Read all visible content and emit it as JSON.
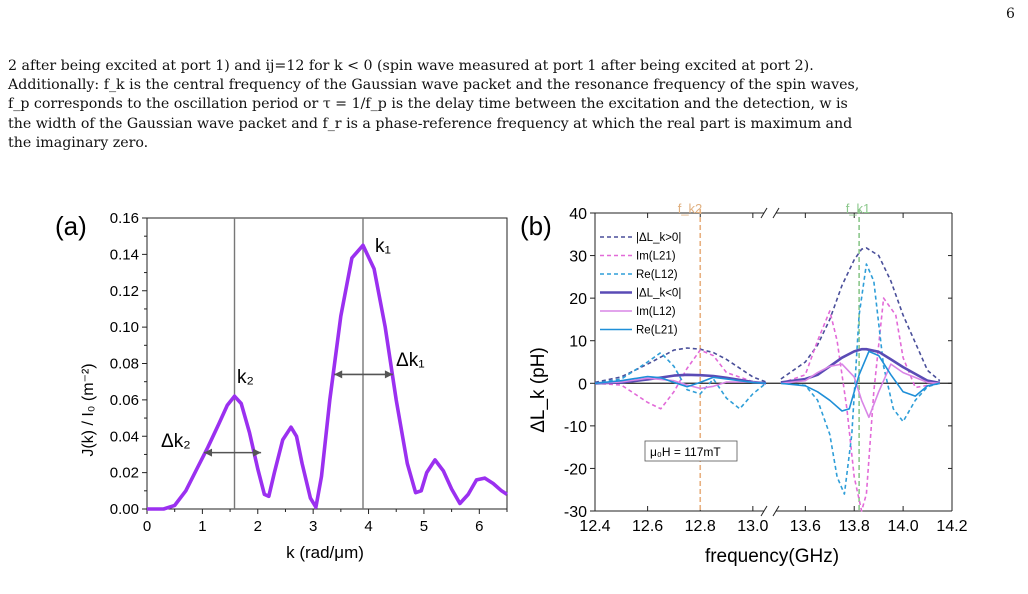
{
  "page_number": "6",
  "paragraph_lines": [
    "2 after being excited at port 1) and ij=12 for k < 0 (spin wave measured at port 1 after being excited at port 2).",
    "Additionally: f_k is the central frequency of the Gaussian wave packet and the resonance frequency of the spin waves,",
    "f_p corresponds to the oscillation period or τ = 1/f_p is the delay time between the excitation and the detection, w is",
    "the width of the Gaussian wave packet and f_r is a phase-reference frequency at which the real part is maximum and",
    "the imaginary zero."
  ],
  "chart_data": [
    {
      "panel_label": "(a)",
      "type": "line",
      "xlabel": "k (rad/μm)",
      "ylabel": "J(k) / I₀ (m⁻²)",
      "xlim": [
        0,
        6.5
      ],
      "ylim": [
        0,
        0.16
      ],
      "xticks": [
        "0",
        "1",
        "2",
        "3",
        "4",
        "5",
        "6"
      ],
      "yticks": [
        "0.00",
        "0.02",
        "0.04",
        "0.06",
        "0.08",
        "0.10",
        "0.12",
        "0.14",
        "0.16"
      ],
      "series": [
        {
          "color": "#9b30f0",
          "x": [
            0.0,
            0.3,
            0.5,
            0.7,
            0.9,
            1.1,
            1.3,
            1.45,
            1.58,
            1.7,
            1.85,
            2.0,
            2.12,
            2.2,
            2.3,
            2.45,
            2.6,
            2.7,
            2.8,
            2.95,
            3.05,
            3.15,
            3.3,
            3.5,
            3.7,
            3.9,
            4.1,
            4.3,
            4.5,
            4.7,
            4.85,
            4.95,
            5.05,
            5.2,
            5.35,
            5.5,
            5.65,
            5.8,
            5.95,
            6.1,
            6.25,
            6.4,
            6.5
          ],
          "values": [
            0.0,
            0.0,
            0.002,
            0.01,
            0.022,
            0.034,
            0.047,
            0.057,
            0.062,
            0.058,
            0.042,
            0.022,
            0.008,
            0.007,
            0.02,
            0.038,
            0.045,
            0.04,
            0.025,
            0.006,
            0.001,
            0.018,
            0.06,
            0.106,
            0.138,
            0.145,
            0.132,
            0.1,
            0.06,
            0.025,
            0.009,
            0.01,
            0.02,
            0.027,
            0.021,
            0.011,
            0.003,
            0.008,
            0.016,
            0.017,
            0.014,
            0.01,
            0.008
          ]
        }
      ],
      "vlines": [
        1.58,
        3.9
      ],
      "annotations": [
        "k₂",
        "k₁",
        "Δk₂",
        "Δk₁"
      ]
    },
    {
      "panel_label": "(b)",
      "type": "line",
      "xlabel": "frequency(GHz)",
      "ylabel": "ΔL_k (pH)",
      "ylim": [
        -30,
        40
      ],
      "xticks": [
        "12.4",
        "12.6",
        "12.8",
        "13.0",
        "13.6",
        "13.8",
        "14.0",
        "14.2"
      ],
      "yticks": [
        "-30",
        "-20",
        "-10",
        "0",
        "10",
        "20",
        "30",
        "40"
      ],
      "top_labels": [
        "f_k2",
        "f_k1"
      ],
      "vline_freqs": [
        12.8,
        13.82
      ],
      "field_label": "μ₀H = 117mT",
      "legend_position": "top-left",
      "series": [
        {
          "name": "|ΔL_k>0|",
          "color": "#4a4f9a",
          "dash": "dash",
          "x": [
            12.4,
            12.5,
            12.6,
            12.7,
            12.75,
            12.8,
            12.85,
            12.9,
            13.0,
            13.05
          ],
          "values": [
            0.2,
            1.5,
            4.5,
            7.8,
            8.3,
            8.0,
            7.2,
            5.6,
            1.5,
            0.3
          ]
        },
        {
          "name": "Im(L21)",
          "color": "#e26ad8",
          "dash": "dash",
          "x": [
            12.4,
            12.5,
            12.6,
            12.65,
            12.7,
            12.75,
            12.8,
            12.85,
            12.9,
            13.0,
            13.05
          ],
          "values": [
            0.0,
            -0.4,
            -4.5,
            -6.0,
            -2.0,
            3.5,
            7.8,
            6.5,
            2.5,
            0.4,
            0.0
          ]
        },
        {
          "name": "Re(L12)",
          "color": "#2f9ed8",
          "dash": "dash",
          "x": [
            12.4,
            12.5,
            12.6,
            12.65,
            12.7,
            12.75,
            12.8,
            12.85,
            12.9,
            12.95,
            13.0,
            13.05
          ],
          "values": [
            0.0,
            1.0,
            5.0,
            7.2,
            4.0,
            -1.5,
            -2.5,
            1.0,
            -3.5,
            -6.0,
            -2.5,
            0.0
          ]
        },
        {
          "name": "|ΔL_k<0|",
          "color": "#5a4bb5",
          "dash": "solid",
          "x": [
            12.4,
            12.5,
            12.6,
            12.7,
            12.75,
            12.8,
            12.85,
            12.9,
            13.0,
            13.05
          ],
          "values": [
            0.0,
            0.2,
            0.9,
            1.8,
            2.0,
            1.9,
            1.7,
            1.3,
            0.3,
            0.0
          ]
        },
        {
          "name": "Im(L12)",
          "color": "#d985e6",
          "dash": "solid",
          "x": [
            12.4,
            12.5,
            12.6,
            12.7,
            12.75,
            12.8,
            12.85,
            12.9,
            13.0,
            13.05
          ],
          "values": [
            0.0,
            0.3,
            1.2,
            0.6,
            -0.4,
            -1.2,
            -0.7,
            0.3,
            0.3,
            0.0
          ]
        },
        {
          "name": "Re(L21)",
          "color": "#1f8fd8",
          "dash": "solid",
          "x": [
            12.4,
            12.5,
            12.6,
            12.65,
            12.7,
            12.75,
            12.8,
            12.85,
            12.9,
            13.0,
            13.05
          ],
          "values": [
            0.0,
            0.6,
            1.6,
            1.3,
            0.2,
            -0.8,
            0.2,
            1.4,
            1.0,
            0.2,
            0.0
          ]
        }
      ],
      "series_right": [
        {
          "name": "|ΔL_k>0|",
          "x": [
            13.5,
            13.6,
            13.65,
            13.7,
            13.75,
            13.8,
            13.83,
            13.85,
            13.9,
            13.95,
            14.0,
            14.1,
            14.15
          ],
          "values": [
            1.0,
            5.0,
            9.0,
            15.0,
            23.0,
            29.0,
            31.5,
            31.8,
            30.0,
            24.0,
            16.0,
            3.0,
            0.6
          ]
        },
        {
          "name": "Im(L21)",
          "x": [
            13.5,
            13.6,
            13.65,
            13.7,
            13.73,
            13.77,
            13.8,
            13.83,
            13.85,
            13.88,
            13.92,
            13.97,
            14.0,
            14.05,
            14.1,
            14.15
          ],
          "values": [
            0.0,
            2.0,
            10.0,
            17.0,
            10.0,
            -6.0,
            -22.0,
            -30.0,
            -26.0,
            -2.0,
            20.0,
            16.0,
            6.0,
            -1.0,
            -0.5,
            0.0
          ]
        },
        {
          "name": "Re(L12)",
          "x": [
            13.5,
            13.6,
            13.65,
            13.7,
            13.73,
            13.76,
            13.79,
            13.82,
            13.85,
            13.88,
            13.92,
            13.96,
            14.0,
            14.05,
            14.1,
            14.15
          ],
          "values": [
            0.0,
            -0.5,
            -4.0,
            -12.0,
            -22.0,
            -26.0,
            -12.0,
            16.0,
            28.0,
            24.0,
            4.0,
            -6.0,
            -9.0,
            -4.0,
            -0.8,
            0.0
          ]
        },
        {
          "name": "|ΔL_k<0|",
          "x": [
            13.5,
            13.6,
            13.65,
            13.7,
            13.75,
            13.8,
            13.83,
            13.85,
            13.9,
            13.95,
            14.0,
            14.1,
            14.15
          ],
          "values": [
            0.2,
            1.0,
            2.0,
            4.0,
            6.0,
            7.5,
            8.0,
            8.0,
            7.4,
            5.6,
            3.8,
            0.6,
            0.1
          ]
        },
        {
          "name": "Im(L12)",
          "x": [
            13.5,
            13.6,
            13.65,
            13.7,
            13.75,
            13.8,
            13.83,
            13.86,
            13.9,
            13.95,
            14.0,
            14.1,
            14.15
          ],
          "values": [
            0.0,
            0.6,
            2.5,
            4.0,
            4.5,
            1.5,
            -4.0,
            -8.0,
            -2.0,
            4.5,
            2.5,
            0.2,
            0.0
          ]
        },
        {
          "name": "Re(L21)",
          "x": [
            13.5,
            13.6,
            13.65,
            13.7,
            13.75,
            13.78,
            13.82,
            13.86,
            13.9,
            13.95,
            14.0,
            14.05,
            14.1,
            14.15
          ],
          "values": [
            0.0,
            -0.6,
            -2.0,
            -4.0,
            -6.5,
            -6.0,
            2.0,
            7.5,
            6.5,
            2.0,
            -2.0,
            -3.0,
            -0.6,
            0.0
          ]
        }
      ]
    }
  ]
}
